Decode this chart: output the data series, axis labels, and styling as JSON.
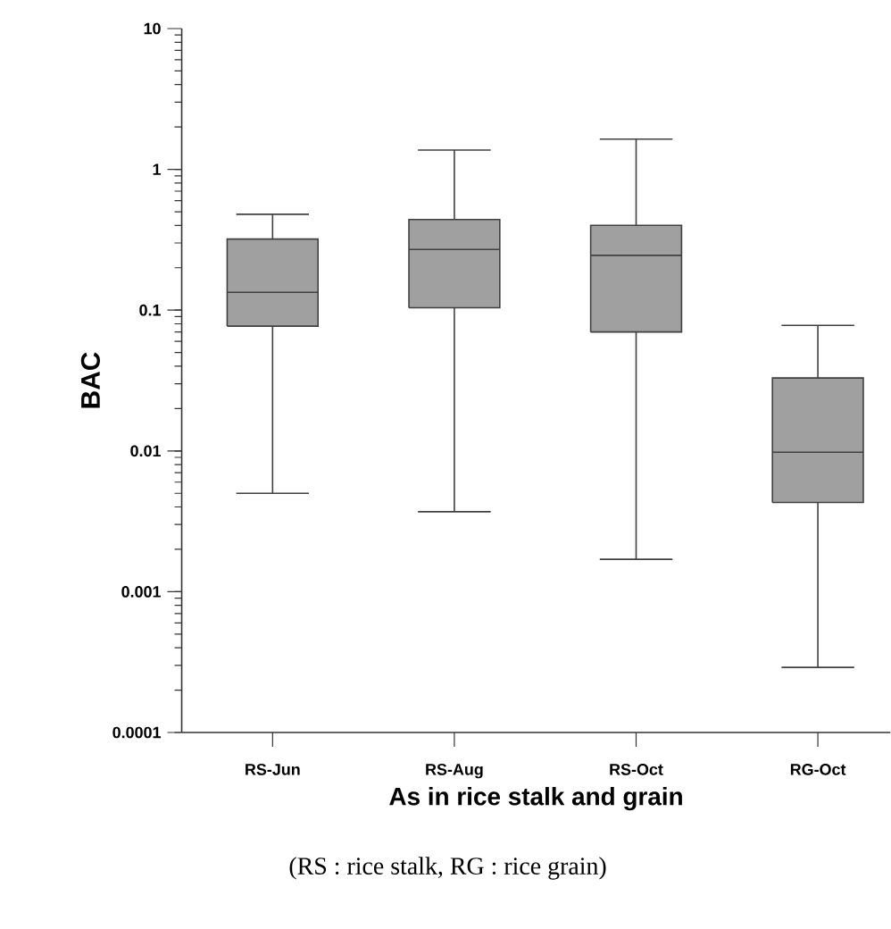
{
  "chart_data": {
    "type": "box",
    "xlabel": "As in rice stalk and grain",
    "ylabel": "BAC",
    "categories": [
      "RS-Jun",
      "RS-Aug",
      "RS-Oct",
      "RG-Oct"
    ],
    "series": [
      {
        "color": "#a0a0a0",
        "boxes": [
          {
            "low": 0.005,
            "q1": 0.077,
            "median": 0.134,
            "q3": 0.32,
            "high": 0.48
          },
          {
            "low": 0.0037,
            "q1": 0.104,
            "median": 0.27,
            "q3": 0.44,
            "high": 1.37
          },
          {
            "low": 0.0017,
            "q1": 0.07,
            "median": 0.245,
            "q3": 0.4,
            "high": 1.64
          },
          {
            "low": 0.00029,
            "q1": 0.0043,
            "median": 0.0098,
            "q3": 0.033,
            "high": 0.078
          }
        ]
      }
    ],
    "log": "y",
    "ylim": [
      0.0001,
      10
    ],
    "yticks": [
      0.0001,
      0.001,
      0.01,
      0.1,
      1,
      10
    ],
    "grid": false,
    "annotations": [
      "(RS : rice stalk, RG : rice grain)"
    ]
  }
}
